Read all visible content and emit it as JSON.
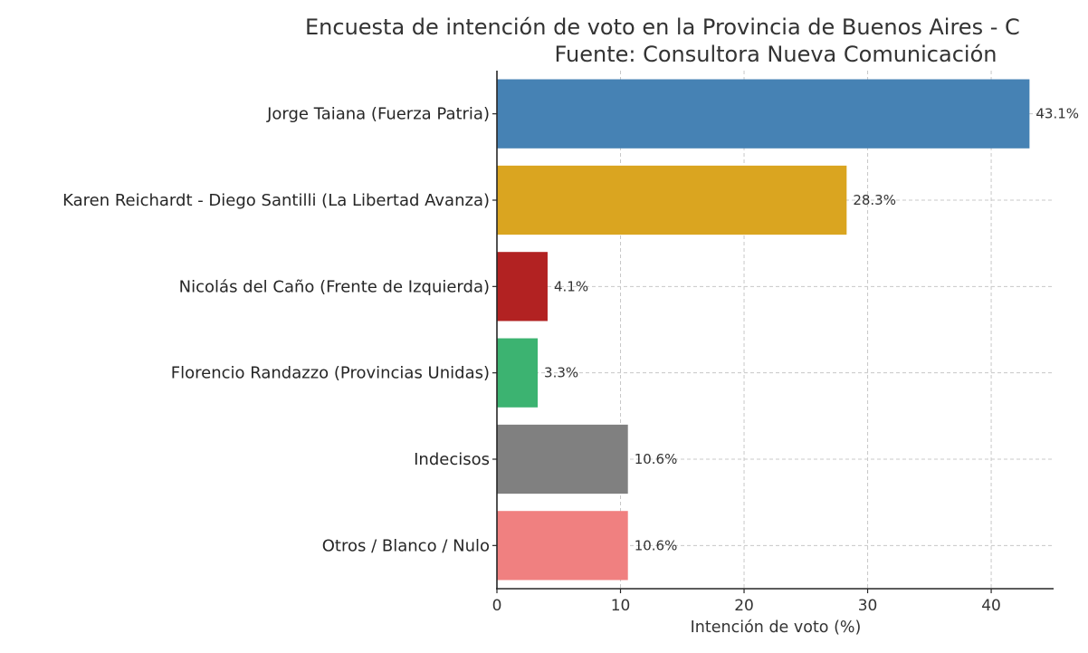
{
  "chart_data": {
    "type": "bar",
    "orientation": "horizontal",
    "title_line1": "Encuesta de intención de voto en la Provincia de Buenos Aires - C",
    "title_line2": "Fuente: Consultora Nueva Comunicación",
    "xlabel": "Intención de voto (%)",
    "ylabel": "",
    "xlim": [
      0,
      45.05
    ],
    "xticks": [
      0,
      10,
      20,
      30,
      40
    ],
    "grid": true,
    "categories": [
      "Jorge Taiana (Fuerza Patria)",
      "Karen Reichardt - Diego Santilli (La Libertad Avanza)",
      "Nicolás del Caño (Frente de Izquierda)",
      "Florencio Randazzo (Provincias Unidas)",
      "Indecisos",
      "Otros / Blanco / Nulo"
    ],
    "values": [
      43.1,
      28.3,
      4.1,
      3.3,
      10.6,
      10.6
    ],
    "data_labels": [
      "43.1%",
      "28.3%",
      "4.1%",
      "3.3%",
      "10.6%",
      "10.6%"
    ],
    "colors": [
      "#4682b4",
      "#daa520",
      "#b22222",
      "#3cb371",
      "#808080",
      "#f08080"
    ]
  }
}
